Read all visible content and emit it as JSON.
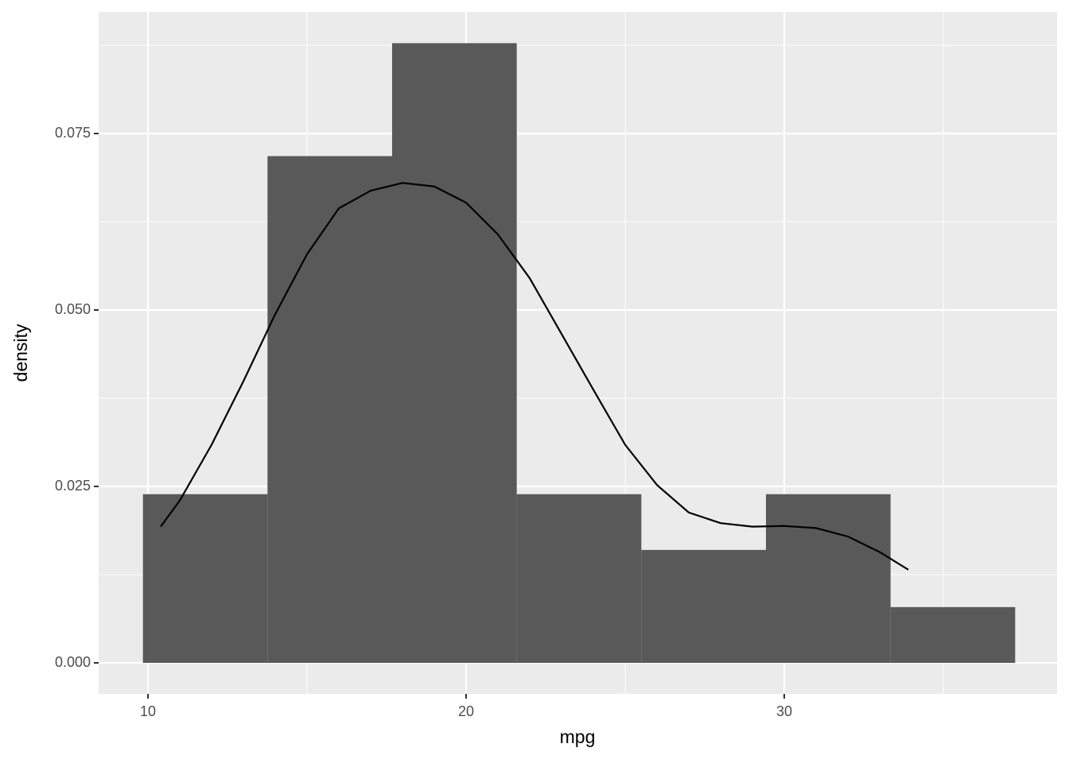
{
  "chart_data": {
    "type": "histogram",
    "x_label": "mpg",
    "y_label": "density",
    "bins": [
      9.842,
      13.758,
      17.675,
      21.592,
      25.508,
      29.425,
      33.342,
      37.258
    ],
    "values": [
      0.0239,
      0.0718,
      0.0878,
      0.0239,
      0.016,
      0.0239,
      0.0079
    ],
    "color": "#595959",
    "density": {
      "color": "#000000",
      "x": [
        10.4,
        11,
        12,
        13,
        14,
        15,
        16,
        17,
        18,
        19,
        20,
        21,
        22,
        23,
        24,
        25,
        26,
        27,
        28,
        29,
        30,
        31,
        32,
        33,
        33.9
      ],
      "y": [
        0.0193,
        0.023,
        0.0309,
        0.0399,
        0.0494,
        0.0579,
        0.0644,
        0.0669,
        0.068,
        0.0675,
        0.0652,
        0.0607,
        0.0545,
        0.0466,
        0.0387,
        0.0309,
        0.0252,
        0.0213,
        0.0198,
        0.0193,
        0.0194,
        0.0191,
        0.0179,
        0.0157,
        0.0132
      ]
    },
    "xlim": [
      8.45,
      38.575
    ],
    "ylim": [
      -0.00439,
      0.09223
    ],
    "xticks": [
      10,
      20,
      30
    ],
    "yticks": [
      {
        "value": 0,
        "label": "0.000"
      },
      {
        "value": 0.025,
        "label": "0.025"
      },
      {
        "value": 0.05,
        "label": "0.050"
      },
      {
        "value": 0.075,
        "label": "0.075"
      }
    ],
    "grid": true
  }
}
